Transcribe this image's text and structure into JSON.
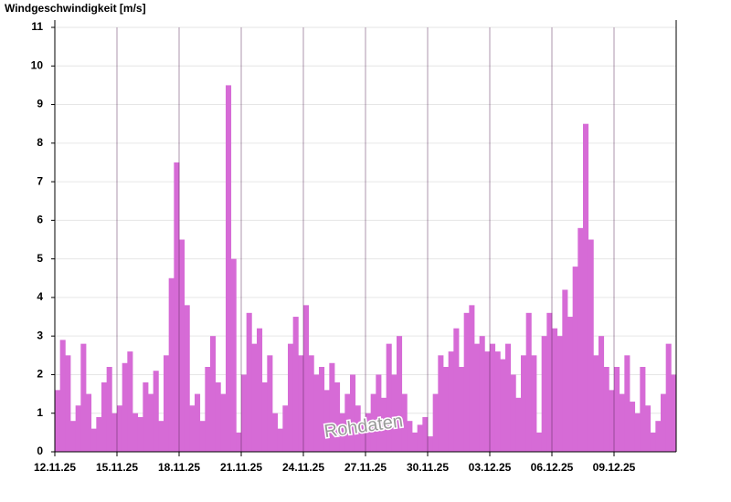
{
  "chart_data": {
    "type": "bar",
    "title": "Windgeschwindigkeit [m/s]",
    "annotation": "Rohdaten",
    "categories": [
      "12.11.25",
      null,
      null,
      null,
      null,
      null,
      null,
      null,
      null,
      null,
      null,
      null,
      "15.11.25",
      null,
      null,
      null,
      null,
      null,
      null,
      null,
      null,
      null,
      null,
      null,
      "18.11.25",
      null,
      null,
      null,
      null,
      null,
      null,
      null,
      null,
      null,
      null,
      null,
      "21.11.25",
      null,
      null,
      null,
      null,
      null,
      null,
      null,
      null,
      null,
      null,
      null,
      "24.11.25",
      null,
      null,
      null,
      null,
      null,
      null,
      null,
      null,
      null,
      null,
      null,
      "27.11.25",
      null,
      null,
      null,
      null,
      null,
      null,
      null,
      null,
      null,
      null,
      null,
      "30.11.25",
      null,
      null,
      null,
      null,
      null,
      null,
      null,
      null,
      null,
      null,
      null,
      "03.12.25",
      null,
      null,
      null,
      null,
      null,
      null,
      null,
      null,
      null,
      null,
      null,
      "06.12.25",
      null,
      null,
      null,
      null,
      null,
      null,
      null,
      null,
      null,
      null,
      null,
      "09.12.25",
      null,
      null,
      null,
      null,
      null,
      null,
      null,
      null,
      null,
      null,
      null
    ],
    "values": [
      1.6,
      2.9,
      2.5,
      0.8,
      1.2,
      2.8,
      1.5,
      0.6,
      0.9,
      1.8,
      2.2,
      1.0,
      1.2,
      2.3,
      2.6,
      1.0,
      0.9,
      1.8,
      1.5,
      2.1,
      0.8,
      2.5,
      4.5,
      7.5,
      5.5,
      3.8,
      1.2,
      1.5,
      0.8,
      2.2,
      3.0,
      1.8,
      1.5,
      9.5,
      5.0,
      0.5,
      2.0,
      3.6,
      2.8,
      3.2,
      1.8,
      2.5,
      1.0,
      0.6,
      1.2,
      2.8,
      3.5,
      2.5,
      3.8,
      2.5,
      2.0,
      2.2,
      1.6,
      2.3,
      1.8,
      1.0,
      1.5,
      2.0,
      1.2,
      0.7,
      1.0,
      1.5,
      2.0,
      1.4,
      2.8,
      2.0,
      3.0,
      1.5,
      0.8,
      0.5,
      0.7,
      0.9,
      0.4,
      1.5,
      2.5,
      2.2,
      2.6,
      3.2,
      2.2,
      3.6,
      3.8,
      2.8,
      3.0,
      2.6,
      2.8,
      2.6,
      2.4,
      2.8,
      2.0,
      1.4,
      2.5,
      3.6,
      2.5,
      0.5,
      3.0,
      3.6,
      3.2,
      3.0,
      4.2,
      3.5,
      4.8,
      5.8,
      8.5,
      5.5,
      2.5,
      3.0,
      2.2,
      1.6,
      2.2,
      1.5,
      2.5,
      1.3,
      1.0,
      2.2,
      1.2,
      0.5,
      0.8,
      1.5,
      2.8,
      2.0
    ],
    "color": "#d66bd6",
    "ylim": [
      0,
      11
    ],
    "yticks": [
      0,
      1,
      2,
      3,
      4,
      5,
      6,
      7,
      8,
      9,
      10,
      11
    ],
    "grid": true
  }
}
